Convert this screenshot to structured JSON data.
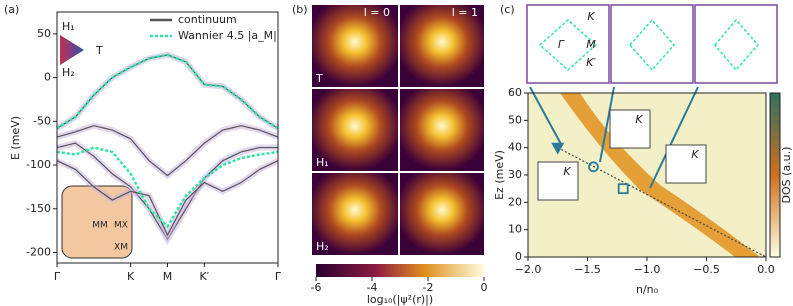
{
  "chart_data": [
    {
      "type": "line",
      "panel_label": "(a)",
      "y_label": "E (meV)",
      "xlim": [
        0,
        3
      ],
      "xticks": [
        {
          "value": 0,
          "label": "Γ"
        },
        {
          "value": 1,
          "label": "K"
        },
        {
          "value": 1.5,
          "label": "M"
        },
        {
          "value": 2,
          "label": "K′"
        },
        {
          "value": 3,
          "label": "Γ"
        }
      ],
      "ylim": [
        -212,
        75
      ],
      "yticks": [
        -200,
        -150,
        -100,
        -50,
        0,
        50
      ],
      "x": [
        0,
        0.25,
        0.5,
        0.75,
        1,
        1.25,
        1.5,
        1.75,
        2,
        2.25,
        2.5,
        2.75,
        3
      ],
      "series": [
        {
          "name": "continuum",
          "color": "#555555",
          "bands": [
            [
              -58,
              -45,
              -20,
              0,
              12,
              22,
              26,
              18,
              -8,
              -10,
              -25,
              -45,
              -58
            ],
            [
              -68,
              -62,
              -55,
              -60,
              -70,
              -95,
              -112,
              -95,
              -75,
              -60,
              -55,
              -60,
              -68
            ],
            [
              -80,
              -75,
              -90,
              -110,
              -125,
              -150,
              -185,
              -150,
              -115,
              -95,
              -85,
              -80,
              -80
            ],
            [
              -95,
              -105,
              -125,
              -140,
              -130,
              -135,
              -180,
              -140,
              -120,
              -130,
              -120,
              -105,
              -95
            ]
          ]
        },
        {
          "name": "Wannier 4.5 |a_M|",
          "color": "#2ee8a5",
          "bands": [
            [
              -58,
              -45,
              -20,
              0,
              12,
              22,
              26,
              18,
              -8,
              -10,
              -25,
              -45,
              -58
            ],
            [
              -85,
              -88,
              -80,
              -85,
              -110,
              -150,
              -170,
              -135,
              -115,
              -100,
              -92,
              -88,
              -85
            ]
          ]
        }
      ],
      "inset_labels": [
        "H₁",
        "T",
        "H₂"
      ],
      "inset_sites": [
        "MM",
        "MX",
        "XM"
      ]
    },
    {
      "type": "heatmap-grid",
      "panel_label": "(b)",
      "columns": [
        "l = 0",
        "l = 1"
      ],
      "rows": [
        "T",
        "H₁",
        "H₂"
      ],
      "colorbar_label": "log₁₀(|ψ²(r)|)",
      "clim": [
        -6,
        0
      ],
      "cticks": [
        -6,
        -4,
        -2,
        0
      ]
    },
    {
      "type": "heatmap",
      "panel_label": "(c)",
      "x_label": "n/n₀",
      "y_label": "Ez (meV)",
      "colorbar_label": "DOS (a.u.)",
      "xlim": [
        -2,
        0
      ],
      "xticks": [
        {
          "value": -2,
          "label": "−2.0"
        },
        {
          "value": -1.5,
          "label": "−1.5"
        },
        {
          "value": -1,
          "label": "−1.0"
        },
        {
          "value": -0.5,
          "label": "−0.5"
        },
        {
          "value": 0,
          "label": "0.0"
        }
      ],
      "ylim": [
        0,
        60
      ],
      "yticks": [
        0,
        10,
        20,
        30,
        40,
        50,
        60
      ],
      "line": {
        "x": [
          -1.75,
          0
        ],
        "y": [
          40,
          0
        ]
      },
      "markers": [
        {
          "shape": "triangle",
          "x": -1.75,
          "y": 40
        },
        {
          "shape": "circle",
          "x": -1.45,
          "y": 33
        },
        {
          "shape": "square",
          "x": -1.2,
          "y": 25
        }
      ],
      "inset_labels": [
        "K",
        "M",
        "K′",
        "Γ"
      ],
      "point_labels": [
        "K",
        "K",
        "K"
      ]
    }
  ]
}
